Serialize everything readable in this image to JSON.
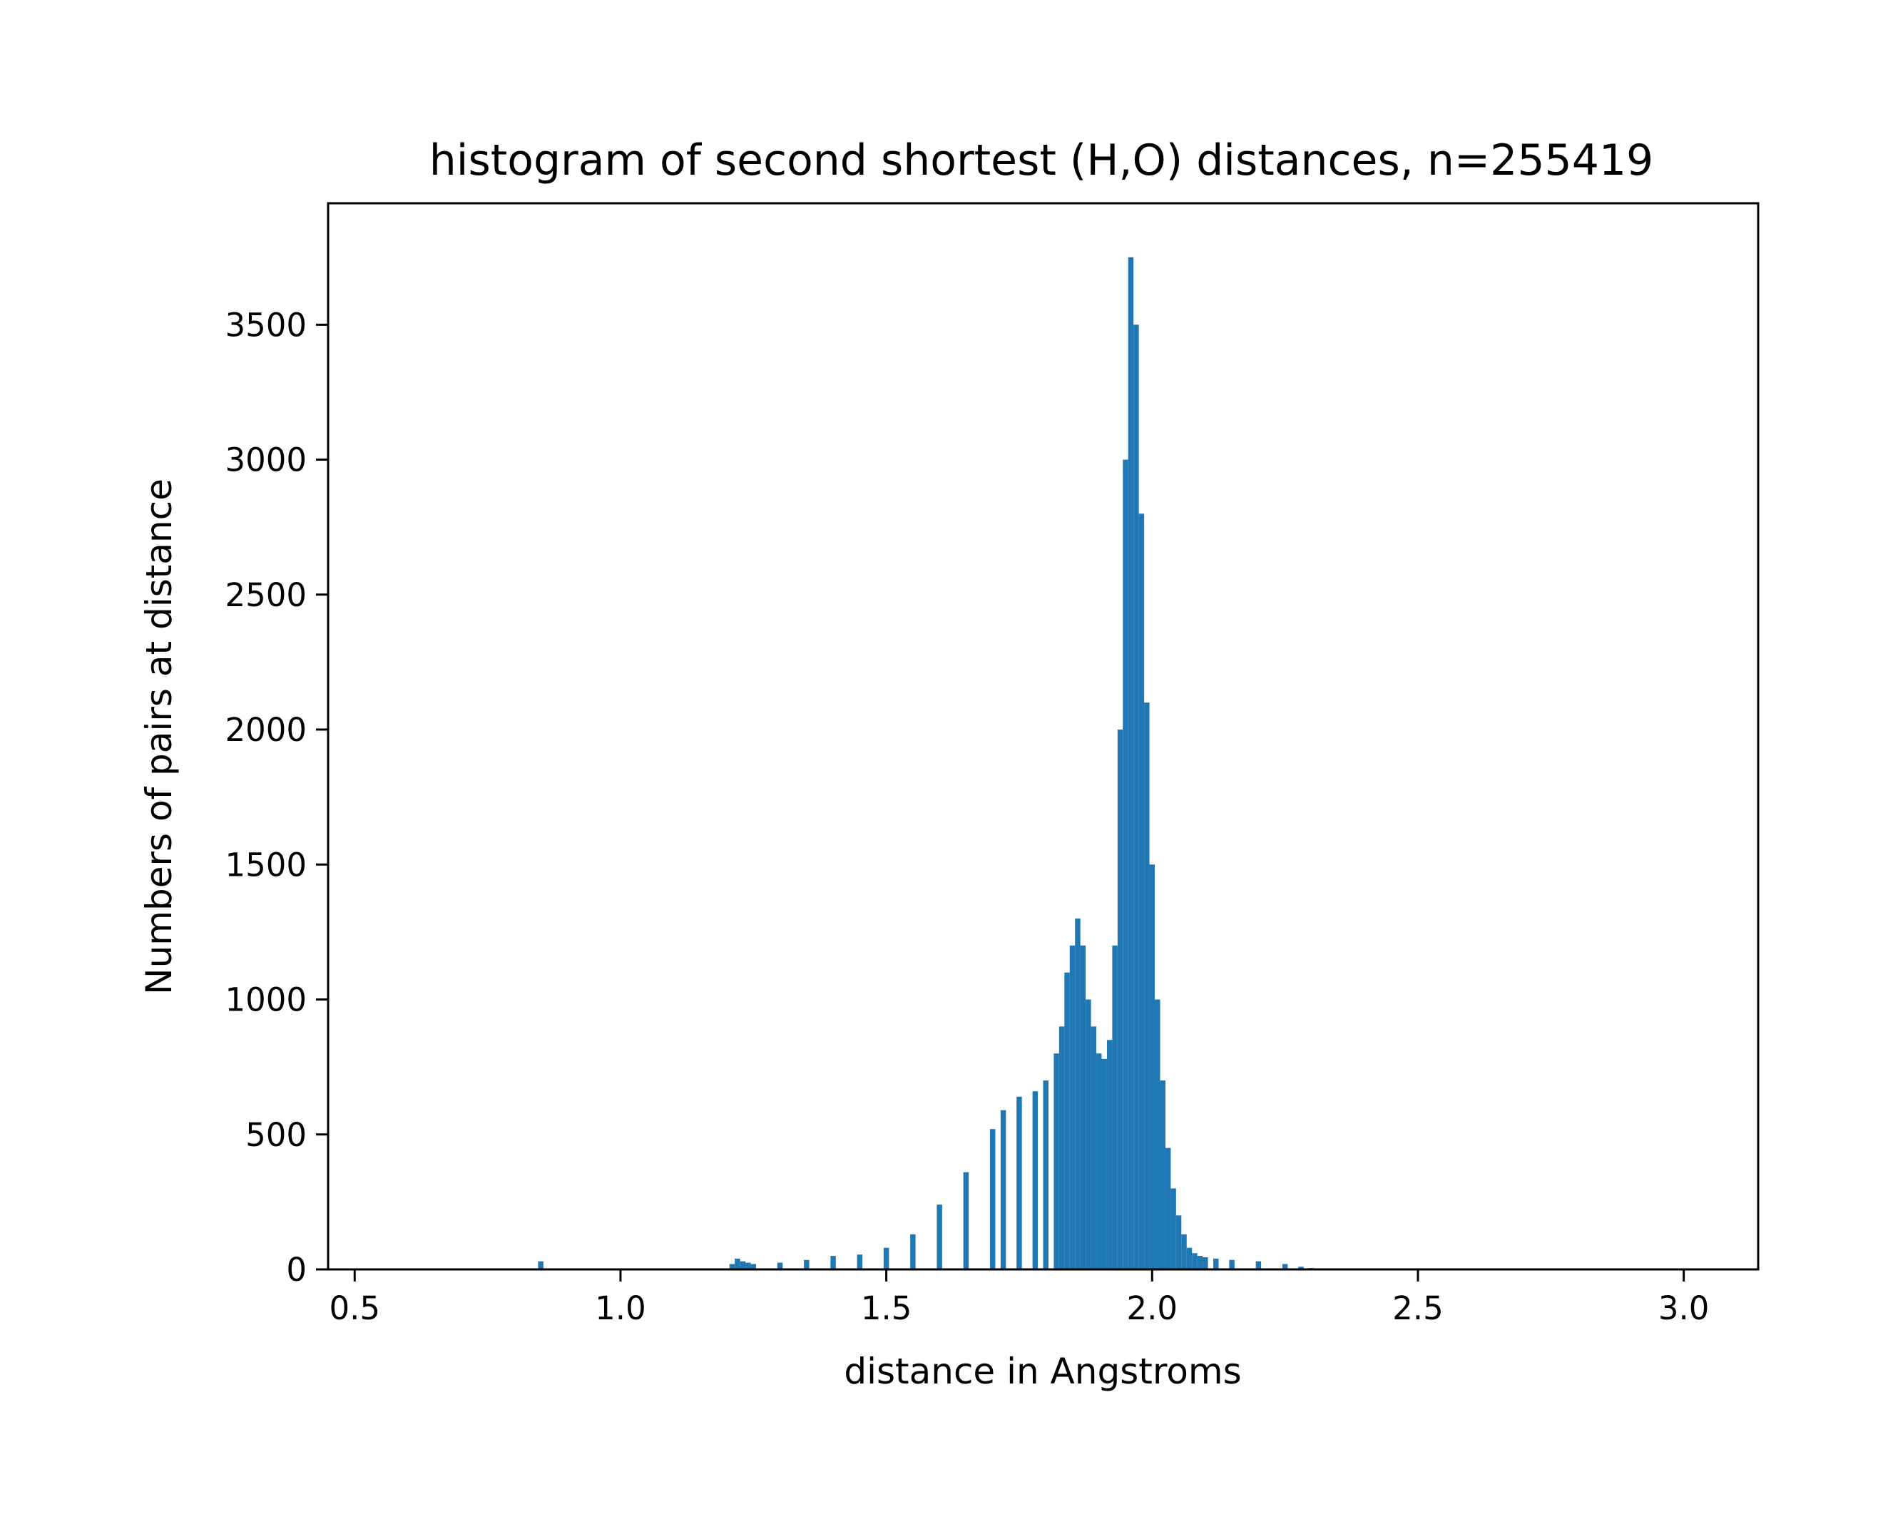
{
  "chart_data": {
    "type": "bar",
    "title": "histogram of second shortest (H,O) distances, n=255419",
    "xlabel": "distance in Angstroms",
    "ylabel": "Numbers of pairs at distance",
    "xlim": [
      0.45,
      3.14
    ],
    "ylim": [
      0,
      3950
    ],
    "bar_color": "#1f77b4",
    "grid": false,
    "xticks": [
      {
        "value": 0.5,
        "label": "0.5"
      },
      {
        "value": 1.0,
        "label": "1.0"
      },
      {
        "value": 1.5,
        "label": "1.5"
      },
      {
        "value": 2.0,
        "label": "2.0"
      },
      {
        "value": 2.5,
        "label": "2.5"
      },
      {
        "value": 3.0,
        "label": "3.0"
      }
    ],
    "yticks": [
      {
        "value": 0,
        "label": "0"
      },
      {
        "value": 500,
        "label": "500"
      },
      {
        "value": 1000,
        "label": "1000"
      },
      {
        "value": 1500,
        "label": "1500"
      },
      {
        "value": 2000,
        "label": "2000"
      },
      {
        "value": 2500,
        "label": "2500"
      },
      {
        "value": 3000,
        "label": "3000"
      },
      {
        "value": 3500,
        "label": "3500"
      }
    ],
    "histogram": {
      "x": [
        0.85,
        1.2,
        1.21,
        1.22,
        1.23,
        1.24,
        1.25,
        1.3,
        1.35,
        1.4,
        1.45,
        1.5,
        1.55,
        1.6,
        1.65,
        1.7,
        1.72,
        1.75,
        1.78,
        1.8,
        1.82,
        1.83,
        1.84,
        1.85,
        1.86,
        1.87,
        1.88,
        1.89,
        1.9,
        1.91,
        1.92,
        1.93,
        1.94,
        1.95,
        1.96,
        1.97,
        1.98,
        1.99,
        2.0,
        2.01,
        2.02,
        2.03,
        2.04,
        2.05,
        2.06,
        2.07,
        2.08,
        2.09,
        2.1,
        2.12,
        2.15,
        2.2,
        2.25,
        2.28,
        2.3,
        2.35
      ],
      "y": [
        30,
        0,
        20,
        40,
        30,
        25,
        20,
        25,
        35,
        50,
        55,
        80,
        130,
        240,
        360,
        520,
        590,
        640,
        660,
        700,
        800,
        900,
        1100,
        1200,
        1300,
        1200,
        1000,
        900,
        800,
        780,
        850,
        1200,
        2000,
        3000,
        3750,
        3500,
        2800,
        2100,
        1500,
        1000,
        700,
        450,
        300,
        200,
        130,
        80,
        60,
        50,
        45,
        40,
        35,
        30,
        20,
        10,
        5,
        0
      ]
    }
  }
}
